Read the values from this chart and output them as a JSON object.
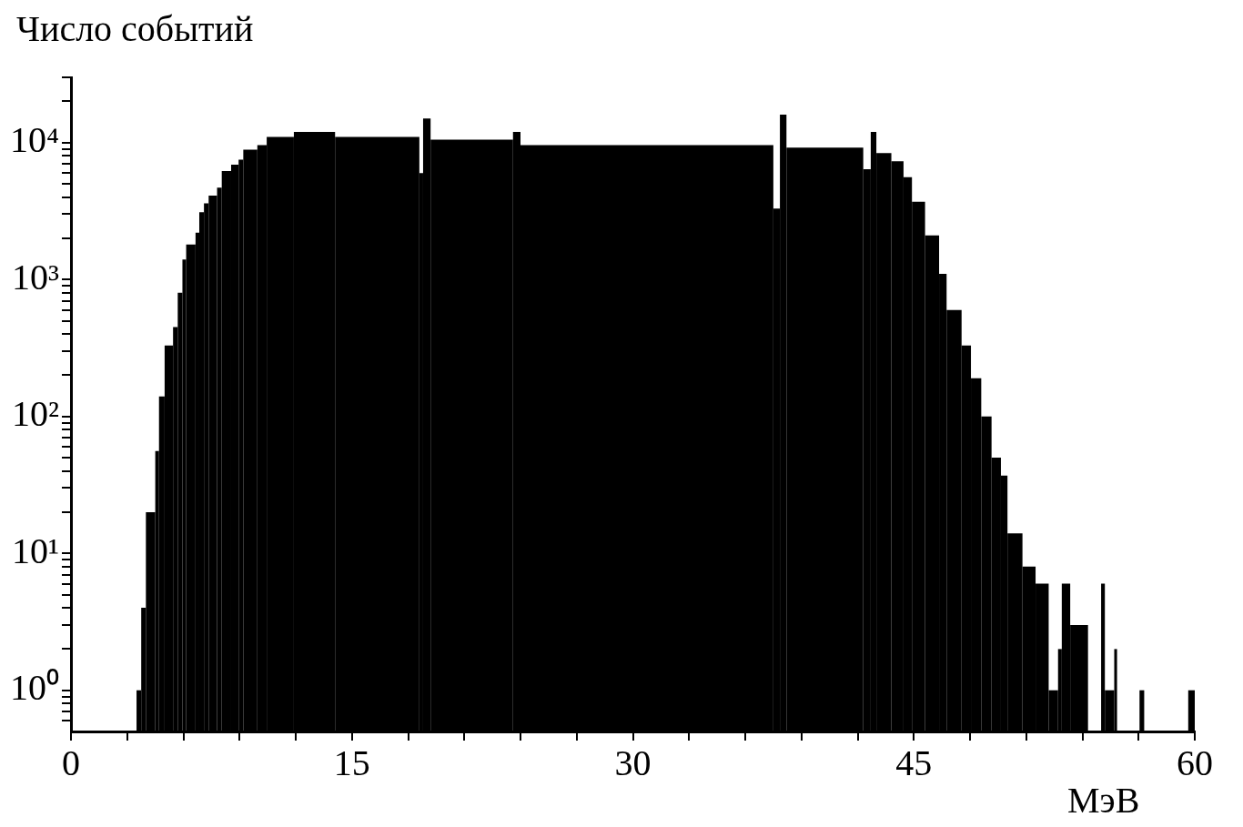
{
  "chart_data": {
    "type": "histogram",
    "ylabel": "Число событий",
    "xlabel": "МэВ",
    "color": "#000000",
    "log": true,
    "grid": false,
    "legend": false,
    "bins": [
      3.5,
      3.75,
      4.0,
      4.5,
      4.7,
      5.0,
      5.45,
      5.7,
      5.95,
      6.15,
      6.65,
      6.85,
      7.1,
      7.35,
      7.8,
      8.05,
      8.55,
      8.95,
      9.2,
      9.95,
      10.45,
      11.9,
      14.1,
      18.6,
      18.8,
      19.2,
      23.6,
      24.0,
      37.5,
      37.85,
      38.2,
      42.3,
      42.7,
      43.0,
      43.8,
      44.45,
      44.9,
      45.6,
      46.35,
      46.75,
      47.55,
      48.05,
      48.6,
      49.15,
      49.65,
      50.0,
      50.8,
      51.5,
      52.2,
      52.7,
      52.9,
      53.35,
      54.3,
      55.0,
      55.2,
      55.7,
      55.85,
      57.05,
      57.3,
      59.65,
      60.0
    ],
    "values": [
      1,
      4,
      20,
      56,
      140,
      330,
      450,
      800,
      1400,
      1800,
      2200,
      3100,
      3600,
      4100,
      4700,
      6200,
      6900,
      7500,
      8900,
      9600,
      11000,
      12000,
      11000,
      6000,
      15000,
      10500,
      12000,
      9600,
      3300,
      16000,
      9200,
      6400,
      12000,
      8400,
      7300,
      5600,
      3700,
      2100,
      1100,
      600,
      330,
      190,
      100,
      50,
      37,
      14,
      8,
      6,
      1,
      2,
      6,
      3,
      null,
      6,
      1,
      2,
      null,
      1,
      null,
      1
    ],
    "xlim": [
      0,
      60
    ],
    "xticks": [
      0,
      {
        "value": 3,
        "label": null
      },
      {
        "value": 6,
        "label": null
      },
      {
        "value": 9,
        "label": null
      },
      {
        "value": 12,
        "label": null
      },
      15,
      {
        "value": 18,
        "label": null
      },
      {
        "value": 21,
        "label": null
      },
      {
        "value": 24,
        "label": null
      },
      {
        "value": 27,
        "label": null
      },
      30,
      {
        "value": 33,
        "label": null
      },
      {
        "value": 36,
        "label": null
      },
      {
        "value": 39,
        "label": null
      },
      {
        "value": 42,
        "label": null
      },
      45,
      {
        "value": 48,
        "label": null
      },
      {
        "value": 51,
        "label": null
      },
      {
        "value": 54,
        "label": null
      },
      {
        "value": 57,
        "label": null
      },
      60
    ],
    "ylim": [
      0.5,
      30000
    ],
    "yticks": [
      {
        "value": 0.6,
        "label": null
      },
      {
        "value": 0.7,
        "label": null
      },
      {
        "value": 0.8,
        "label": null
      },
      {
        "value": 0.9,
        "label": null
      },
      {
        "value": 1,
        "label": "10⁰"
      },
      {
        "value": 2,
        "label": null
      },
      {
        "value": 3,
        "label": null
      },
      {
        "value": 4,
        "label": null
      },
      {
        "value": 5,
        "label": null
      },
      {
        "value": 6,
        "label": null
      },
      {
        "value": 7,
        "label": null
      },
      {
        "value": 8,
        "label": null
      },
      {
        "value": 9,
        "label": null
      },
      {
        "value": 10,
        "label": "10¹"
      },
      {
        "value": 20,
        "label": null
      },
      {
        "value": 30,
        "label": null
      },
      {
        "value": 40,
        "label": null
      },
      {
        "value": 50,
        "label": null
      },
      {
        "value": 60,
        "label": null
      },
      {
        "value": 70,
        "label": null
      },
      {
        "value": 80,
        "label": null
      },
      {
        "value": 90,
        "label": null
      },
      {
        "value": 100,
        "label": "10²"
      },
      {
        "value": 200,
        "label": null
      },
      {
        "value": 300,
        "label": null
      },
      {
        "value": 400,
        "label": null
      },
      {
        "value": 500,
        "label": null
      },
      {
        "value": 600,
        "label": null
      },
      {
        "value": 700,
        "label": null
      },
      {
        "value": 800,
        "label": null
      },
      {
        "value": 900,
        "label": null
      },
      {
        "value": 1000,
        "label": "10³"
      },
      {
        "value": 2000,
        "label": null
      },
      {
        "value": 3000,
        "label": null
      },
      {
        "value": 4000,
        "label": null
      },
      {
        "value": 5000,
        "label": null
      },
      {
        "value": 6000,
        "label": null
      },
      {
        "value": 7000,
        "label": null
      },
      {
        "value": 8000,
        "label": null
      },
      {
        "value": 9000,
        "label": null
      },
      {
        "value": 10000,
        "label": "10⁴"
      },
      {
        "value": 20000,
        "label": null
      },
      {
        "value": 30000,
        "label": null
      }
    ]
  }
}
